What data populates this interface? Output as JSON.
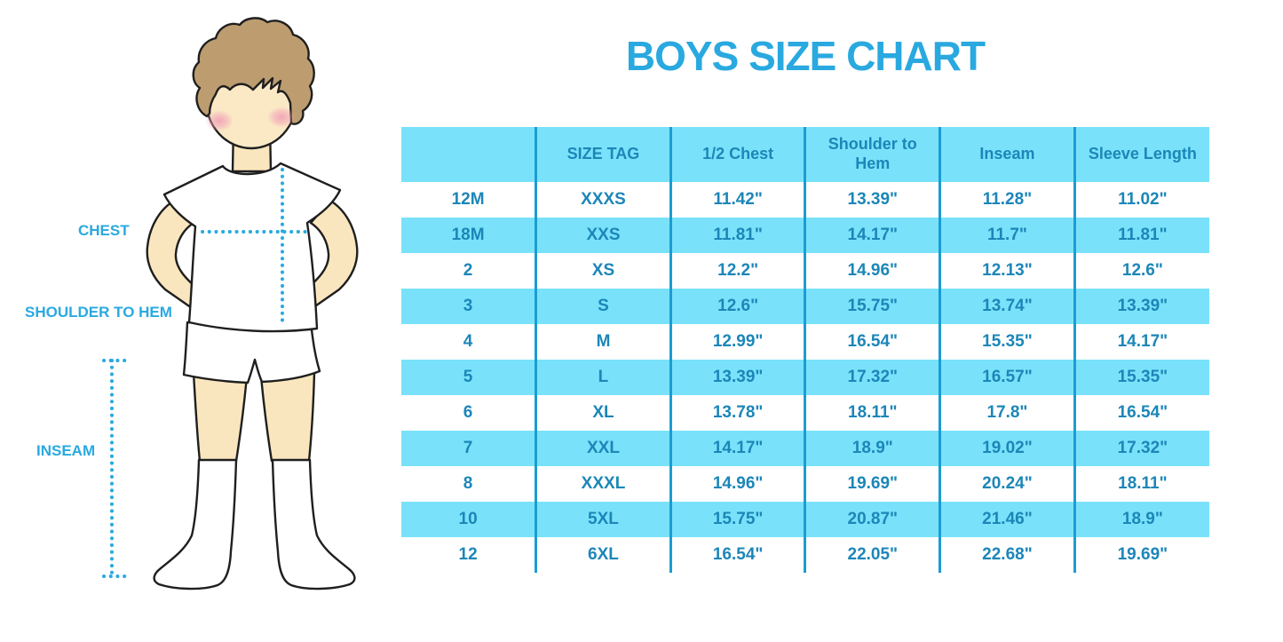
{
  "title": "BOYS SIZE CHART",
  "figure": {
    "illustration": "cartoon-boy-with-measurement-lines",
    "labels": {
      "chest": "CHEST",
      "shoulder_to_hem": "SHOULDER TO HEM",
      "inseam": "INSEAM"
    }
  },
  "colors": {
    "accent_blue": "#29A9E0",
    "table_text_blue": "#1C86B8",
    "row_cyan": "#79E2FA",
    "divider_blue": "#1B9CD3",
    "skin": "#FAE6BE",
    "hair_brown": "#BD9D70",
    "blush_pink": "#F1A0B5",
    "outline": "#1F1F1F"
  },
  "chart_data": {
    "type": "table",
    "title": "BOYS SIZE CHART",
    "units": "inches",
    "columns": [
      "",
      "SIZE TAG",
      "1/2 Chest",
      "Shoulder to Hem",
      "Inseam",
      "Sleeve Length"
    ],
    "rows": [
      [
        "12M",
        "XXXS",
        "11.42\"",
        "13.39\"",
        "11.28\"",
        "11.02\""
      ],
      [
        "18M",
        "XXS",
        "11.81\"",
        "14.17\"",
        "11.7\"",
        "11.81\""
      ],
      [
        "2",
        "XS",
        "12.2\"",
        "14.96\"",
        "12.13\"",
        "12.6\""
      ],
      [
        "3",
        "S",
        "12.6\"",
        "15.75\"",
        "13.74\"",
        "13.39\""
      ],
      [
        "4",
        "M",
        "12.99\"",
        "16.54\"",
        "15.35\"",
        "14.17\""
      ],
      [
        "5",
        "L",
        "13.39\"",
        "17.32\"",
        "16.57\"",
        "15.35\""
      ],
      [
        "6",
        "XL",
        "13.78\"",
        "18.11\"",
        "17.8\"",
        "16.54\""
      ],
      [
        "7",
        "XXL",
        "14.17\"",
        "18.9\"",
        "19.02\"",
        "17.32\""
      ],
      [
        "8",
        "XXXL",
        "14.96\"",
        "19.69\"",
        "20.24\"",
        "18.11\""
      ],
      [
        "10",
        "5XL",
        "15.75\"",
        "20.87\"",
        "21.46\"",
        "18.9\""
      ],
      [
        "12",
        "6XL",
        "16.54\"",
        "22.05\"",
        "22.68\"",
        "19.69\""
      ]
    ],
    "layout": {
      "header_fill": "cyan",
      "row_striping": "white / cyan alternating starting white",
      "column_dividers": true,
      "outer_border": false
    }
  }
}
